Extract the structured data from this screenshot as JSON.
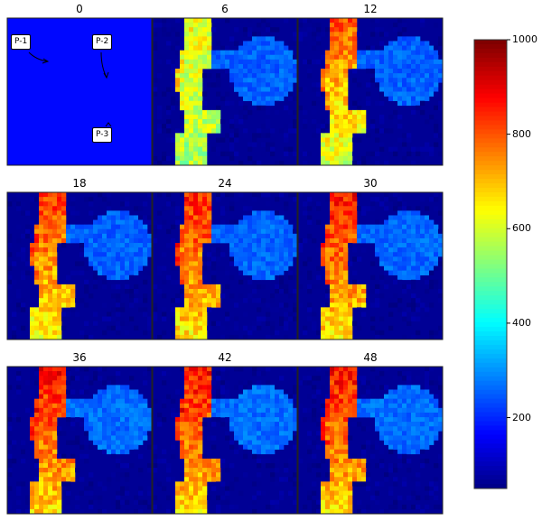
{
  "chart_data": {
    "type": "heatmap",
    "colormap": "jet",
    "panel_titles": [
      "0",
      "6",
      "12",
      "18",
      "24",
      "30",
      "36",
      "42",
      "48"
    ],
    "frames": [
      {
        "t": 0,
        "background": 175,
        "uniform": true
      },
      {
        "t": 6,
        "background": 70,
        "blob": 260,
        "channel_top": 640,
        "channel_bottom": 560
      },
      {
        "t": 12,
        "background": 70,
        "blob": 260,
        "channel_top": 800,
        "channel_bottom": 600
      },
      {
        "t": 18,
        "background": 70,
        "blob": 260,
        "channel_top": 830,
        "channel_bottom": 640
      },
      {
        "t": 24,
        "background": 70,
        "blob": 265,
        "channel_top": 850,
        "channel_bottom": 660
      },
      {
        "t": 30,
        "background": 70,
        "blob": 265,
        "channel_top": 860,
        "channel_bottom": 670
      },
      {
        "t": 36,
        "background": 70,
        "blob": 270,
        "channel_top": 870,
        "channel_bottom": 680
      },
      {
        "t": 42,
        "background": 70,
        "blob": 270,
        "channel_top": 870,
        "channel_bottom": 680
      },
      {
        "t": 48,
        "background": 70,
        "blob": 270,
        "channel_top": 870,
        "channel_bottom": 680
      }
    ],
    "annotations": [
      "P-1",
      "P-2",
      "P-3"
    ],
    "colorbar": {
      "min": 50,
      "max": 1000,
      "ticks": [
        "200",
        "400",
        "600",
        "800",
        "1000"
      ],
      "tick_values": [
        200,
        400,
        600,
        800,
        1000
      ]
    }
  }
}
